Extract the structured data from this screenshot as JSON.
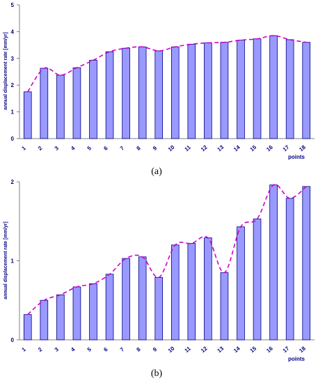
{
  "colors": {
    "bar_fill": "#9999ff",
    "bar_stroke": "#000080",
    "trend_line": "#cc00cc",
    "axis": "#808080",
    "label_text": "#000080"
  },
  "chart_data": [
    {
      "type": "bar",
      "panel_label": "(a)",
      "xlabel": "points",
      "ylabel": "annual displacement rate [mm/yr]",
      "ylim": [
        0,
        5
      ],
      "yticks": [
        0,
        1,
        2,
        3,
        4,
        5
      ],
      "grid": false,
      "trend_line": "dashed smooth curve through bar tops",
      "categories": [
        "1",
        "2",
        "3",
        "4",
        "5",
        "6",
        "7",
        "8",
        "9",
        "10",
        "11",
        "12",
        "13",
        "14",
        "15",
        "16",
        "17",
        "18"
      ],
      "values": [
        1.75,
        2.63,
        2.37,
        2.65,
        2.93,
        3.25,
        3.38,
        3.43,
        3.28,
        3.43,
        3.53,
        3.58,
        3.6,
        3.68,
        3.73,
        3.85,
        3.7,
        3.6
      ]
    },
    {
      "type": "bar",
      "panel_label": "(b)",
      "xlabel": "points",
      "ylabel": "annual displacement rate [mm/yr]",
      "ylim": [
        0,
        2
      ],
      "yticks": [
        0,
        1,
        2
      ],
      "grid": false,
      "trend_line": "dashed smooth curve through bar tops",
      "categories": [
        "1",
        "2",
        "3",
        "4",
        "5",
        "6",
        "7",
        "8",
        "9",
        "10",
        "11",
        "12",
        "13",
        "14",
        "15",
        "16",
        "17",
        "18"
      ],
      "values": [
        0.32,
        0.5,
        0.57,
        0.67,
        0.71,
        0.83,
        1.03,
        1.05,
        0.79,
        1.2,
        1.22,
        1.29,
        0.85,
        1.43,
        1.53,
        1.96,
        1.79,
        1.94
      ]
    }
  ]
}
